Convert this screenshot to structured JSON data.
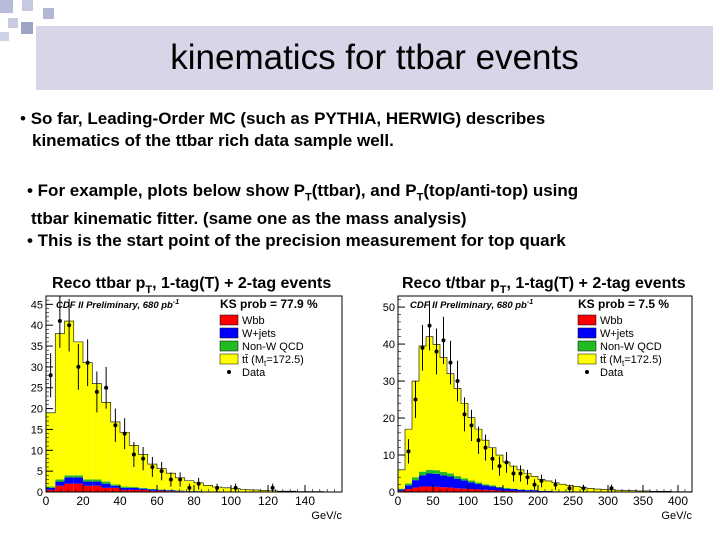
{
  "slide": {
    "title": "kinematics for ttbar events",
    "bullet1": {
      "marker": "•",
      "line1": "So far, Leading-Order MC (such as PYTHIA, HERWIG) describes",
      "line2": "kinematics of the ttbar rich data sample well."
    },
    "bullet2": {
      "line1_pre": "• For example, plots below show P",
      "line1_sub1": "T",
      "line1_mid": "(ttbar), and P",
      "line1_sub2": "T",
      "line1_post": "(top/anti-top) using",
      "line2": "ttbar kinematic fitter. (same one as the mass analysis)",
      "line3": "• This is the start point of the precision measurement for top quark"
    },
    "colors": {
      "title_bg": "#d6d6e8",
      "deco_square": "#9fa3c6"
    }
  },
  "chart_data": [
    {
      "type": "bar",
      "stacked": true,
      "title_main": "Reco ttbar p",
      "title_sub": "T",
      "title_rest": ", 1-tag(T) + 2-tag events",
      "preliminary_text": "CDF II Preliminary, 680 pb",
      "preliminary_sup": "-1",
      "ks_text": "KS prob = 77.9 %",
      "xlabel": "GeV/c",
      "xlim": [
        0,
        160
      ],
      "ylim": [
        0,
        47
      ],
      "xticks": [
        0,
        20,
        40,
        60,
        80,
        100,
        120,
        140
      ],
      "yticks": [
        0,
        5,
        10,
        15,
        20,
        25,
        30,
        35,
        40,
        45
      ],
      "bin_width": 5,
      "legend": [
        {
          "name": "Wbb",
          "color": "#ff0000"
        },
        {
          "name": "W+jets",
          "color": "#0000ff"
        },
        {
          "name": "Non-W QCD",
          "color": "#22bb22"
        },
        {
          "name": "tt̄ (M",
          "sub": "t",
          "rest": "=172.5)",
          "color": "#ffff00"
        },
        {
          "name": "Data",
          "color": "#000000",
          "marker": true
        }
      ],
      "series": [
        {
          "name": "Wbb",
          "color": "#ff0000",
          "values": [
            0.5,
            1.5,
            2,
            2,
            1.5,
            1.5,
            1,
            1,
            0.5,
            0.5,
            0.5,
            0.3,
            0.3,
            0.2,
            0.2,
            0.1,
            0.1,
            0.1,
            0,
            0,
            0,
            0,
            0,
            0,
            0,
            0,
            0,
            0,
            0,
            0,
            0,
            0
          ]
        },
        {
          "name": "W+jets",
          "color": "#0000ff",
          "values": [
            0.5,
            1,
            1.5,
            1.5,
            1,
            1,
            1,
            0.5,
            0.5,
            0.5,
            0.3,
            0.3,
            0.2,
            0.2,
            0.1,
            0.1,
            0.1,
            0,
            0,
            0,
            0,
            0,
            0,
            0,
            0,
            0,
            0,
            0,
            0,
            0,
            0,
            0
          ]
        },
        {
          "name": "Non-W QCD",
          "color": "#22bb22",
          "values": [
            0.3,
            0.5,
            0.5,
            0.5,
            0.5,
            0.5,
            0.5,
            0.3,
            0.3,
            0.2,
            0.2,
            0.1,
            0.1,
            0.1,
            0.1,
            0,
            0,
            0,
            0,
            0,
            0,
            0,
            0,
            0,
            0,
            0,
            0,
            0,
            0,
            0,
            0,
            0
          ]
        },
        {
          "name": "tt̄",
          "color": "#ffff00",
          "values": [
            17.7,
            35,
            37,
            32,
            28,
            23,
            19,
            15,
            13,
            10,
            8,
            6,
            5,
            4,
            3,
            2.5,
            2,
            1.5,
            1.2,
            1,
            0.8,
            0.6,
            0.5,
            0.4,
            0.3,
            0.2,
            0.2,
            0.1,
            0.1,
            0.1,
            0,
            0
          ]
        }
      ],
      "data": [
        {
          "x": 2.5,
          "y": 28,
          "err": 5.3
        },
        {
          "x": 7.5,
          "y": 41,
          "err": 6.4
        },
        {
          "x": 12.5,
          "y": 40,
          "err": 6.3
        },
        {
          "x": 17.5,
          "y": 30,
          "err": 5.5
        },
        {
          "x": 22.5,
          "y": 31,
          "err": 5.6
        },
        {
          "x": 27.5,
          "y": 24,
          "err": 4.9
        },
        {
          "x": 32.5,
          "y": 25,
          "err": 5
        },
        {
          "x": 37.5,
          "y": 16,
          "err": 4
        },
        {
          "x": 42.5,
          "y": 14,
          "err": 3.7
        },
        {
          "x": 47.5,
          "y": 9,
          "err": 3
        },
        {
          "x": 52.5,
          "y": 8,
          "err": 2.8
        },
        {
          "x": 57.5,
          "y": 6,
          "err": 2.4
        },
        {
          "x": 62.5,
          "y": 5,
          "err": 2.2
        },
        {
          "x": 67.5,
          "y": 3,
          "err": 1.7
        },
        {
          "x": 72.5,
          "y": 3,
          "err": 1.7
        },
        {
          "x": 77.5,
          "y": 1,
          "err": 1
        },
        {
          "x": 82.5,
          "y": 2,
          "err": 1.4
        },
        {
          "x": 92.5,
          "y": 1,
          "err": 1
        },
        {
          "x": 102.5,
          "y": 1,
          "err": 1
        },
        {
          "x": 122.5,
          "y": 1,
          "err": 1
        }
      ]
    },
    {
      "type": "bar",
      "stacked": true,
      "title_main": "Reco t/tbar p",
      "title_sub": "T",
      "title_rest": ", 1-tag(T) + 2-tag events",
      "preliminary_text": "CDF II Preliminary, 680 pb",
      "preliminary_sup": "-1",
      "ks_text": "KS prob = 7.5 %",
      "xlabel": "GeV/c",
      "xlim": [
        0,
        420
      ],
      "ylim": [
        0,
        53
      ],
      "xticks": [
        0,
        50,
        100,
        150,
        200,
        250,
        300,
        350,
        400
      ],
      "yticks": [
        0,
        10,
        20,
        30,
        40,
        50
      ],
      "bin_width": 10,
      "legend": [
        {
          "name": "Wbb",
          "color": "#ff0000"
        },
        {
          "name": "W+jets",
          "color": "#0000ff"
        },
        {
          "name": "Non-W QCD",
          "color": "#22bb22"
        },
        {
          "name": "tt̄ (M",
          "sub": "t",
          "rest": "=172.5)",
          "color": "#ffff00"
        },
        {
          "name": "Data",
          "color": "#000000",
          "marker": true
        }
      ],
      "series": [
        {
          "name": "Wbb",
          "color": "#ff0000",
          "values": [
            0.3,
            0.8,
            1.2,
            1.5,
            1.5,
            1.4,
            1.3,
            1.2,
            1,
            0.9,
            0.8,
            0.7,
            0.6,
            0.5,
            0.4,
            0.3,
            0.3,
            0.2,
            0.2,
            0.2,
            0.1,
            0.1,
            0.1,
            0.1,
            0.1,
            0,
            0,
            0,
            0,
            0,
            0,
            0,
            0,
            0,
            0,
            0,
            0,
            0,
            0,
            0,
            0,
            0
          ]
        },
        {
          "name": "W+jets",
          "color": "#0000ff",
          "values": [
            0.4,
            1,
            2,
            3,
            3.5,
            3.5,
            3.2,
            3,
            2.6,
            2.2,
            1.8,
            1.5,
            1.2,
            1,
            0.8,
            0.6,
            0.5,
            0.4,
            0.3,
            0.3,
            0.2,
            0.2,
            0.1,
            0.1,
            0.1,
            0.1,
            0,
            0,
            0,
            0,
            0,
            0,
            0,
            0,
            0,
            0,
            0,
            0,
            0,
            0,
            0,
            0
          ]
        },
        {
          "name": "Non-W QCD",
          "color": "#22bb22",
          "values": [
            0.2,
            0.5,
            0.8,
            1,
            1,
            1,
            0.9,
            0.8,
            0.7,
            0.6,
            0.5,
            0.4,
            0.3,
            0.3,
            0.2,
            0.2,
            0.1,
            0.1,
            0.1,
            0.1,
            0,
            0,
            0,
            0,
            0,
            0,
            0,
            0,
            0,
            0,
            0,
            0,
            0,
            0,
            0,
            0,
            0,
            0,
            0,
            0,
            0,
            0
          ]
        },
        {
          "name": "tt̄",
          "color": "#ffff00",
          "values": [
            5.1,
            14.7,
            26,
            34,
            36,
            34,
            31,
            27,
            23.7,
            20.3,
            17,
            14.4,
            11.9,
            10.2,
            8.6,
            7,
            6.1,
            5.3,
            4.4,
            3.6,
            3.1,
            2.7,
            2.3,
            1.9,
            1.6,
            1.4,
            1.2,
            1,
            0.8,
            0.7,
            0.6,
            0.5,
            0.4,
            0.4,
            0.3,
            0.3,
            0.2,
            0.2,
            0.2,
            0.1,
            0.1,
            0.1
          ]
        }
      ],
      "data": [
        {
          "x": 15,
          "y": 11,
          "err": 3.3
        },
        {
          "x": 25,
          "y": 25,
          "err": 5
        },
        {
          "x": 35,
          "y": 39,
          "err": 6.2
        },
        {
          "x": 45,
          "y": 45,
          "err": 6.7
        },
        {
          "x": 55,
          "y": 38,
          "err": 6.2
        },
        {
          "x": 65,
          "y": 41,
          "err": 6.4
        },
        {
          "x": 75,
          "y": 35,
          "err": 5.9
        },
        {
          "x": 85,
          "y": 30,
          "err": 5.5
        },
        {
          "x": 95,
          "y": 21,
          "err": 4.6
        },
        {
          "x": 105,
          "y": 18,
          "err": 4.2
        },
        {
          "x": 115,
          "y": 14,
          "err": 3.7
        },
        {
          "x": 125,
          "y": 12,
          "err": 3.5
        },
        {
          "x": 135,
          "y": 9,
          "err": 3
        },
        {
          "x": 145,
          "y": 7,
          "err": 2.6
        },
        {
          "x": 155,
          "y": 8,
          "err": 2.8
        },
        {
          "x": 165,
          "y": 5,
          "err": 2.2
        },
        {
          "x": 175,
          "y": 5,
          "err": 2.2
        },
        {
          "x": 185,
          "y": 4,
          "err": 2
        },
        {
          "x": 195,
          "y": 2,
          "err": 1.4
        },
        {
          "x": 205,
          "y": 3,
          "err": 1.7
        },
        {
          "x": 225,
          "y": 2,
          "err": 1.4
        },
        {
          "x": 245,
          "y": 1,
          "err": 1
        },
        {
          "x": 265,
          "y": 1,
          "err": 1
        },
        {
          "x": 305,
          "y": 1,
          "err": 1
        }
      ]
    }
  ]
}
